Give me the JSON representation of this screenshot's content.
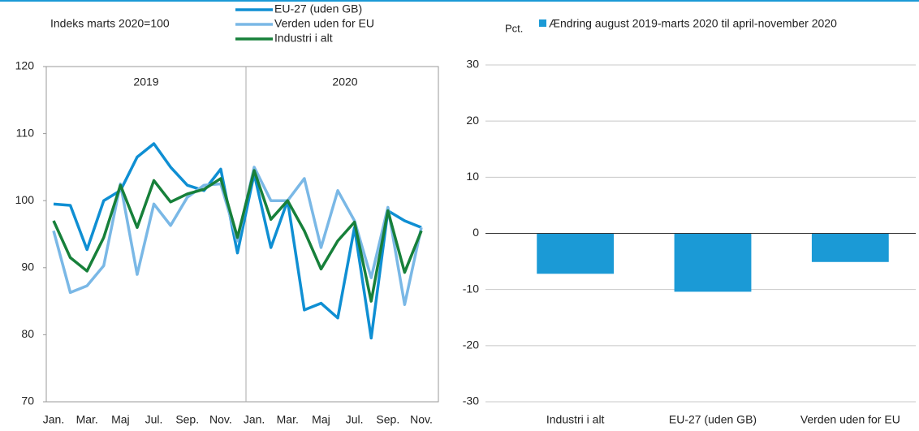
{
  "chart_data": [
    {
      "type": "line",
      "y_label": "Indeks marts 2020=100",
      "annotations": [
        "2019",
        "2020"
      ],
      "categories": [
        "Jan.",
        null,
        "Mar.",
        null,
        "Maj",
        null,
        "Jul.",
        null,
        "Sep.",
        null,
        "Nov.",
        null,
        "Jan.",
        null,
        "Mar.",
        null,
        "Maj",
        null,
        "Jul.",
        null,
        "Sep.",
        null,
        "Nov."
      ],
      "series": [
        {
          "name": "EU-27 (uden GB)",
          "color": "#0f8fd3",
          "values": [
            99.5,
            99.3,
            92.7,
            100,
            101.5,
            106.5,
            108.5,
            105,
            102.3,
            101.5,
            104.7,
            92.2,
            104,
            93,
            100,
            83.7,
            84.7,
            82.5,
            96,
            79.5,
            98.5,
            97,
            96
          ]
        },
        {
          "name": "Verden uden for EU",
          "color": "#7ab8e6",
          "values": [
            95.5,
            86.3,
            87.3,
            90.3,
            102.5,
            89,
            99.5,
            96.3,
            100.5,
            102.3,
            102.5,
            94,
            105,
            100,
            100,
            103.3,
            93,
            101.5,
            97,
            88.5,
            99,
            84.5,
            96
          ]
        },
        {
          "name": "Industri i alt",
          "color": "#17803a",
          "values": [
            97,
            91.5,
            89.5,
            94.5,
            102.3,
            96,
            103,
            99.8,
            101,
            101.7,
            103.3,
            94.5,
            104.5,
            97.2,
            100,
            95.5,
            89.8,
            94,
            96.8,
            85,
            98.5,
            89.3,
            95.5
          ]
        }
      ],
      "ylim": [
        70,
        120
      ],
      "yticks": [
        70,
        80,
        90,
        100,
        110,
        120
      ],
      "grid": false
    },
    {
      "type": "bar",
      "y_label": "Pct.",
      "categories": [
        "Industri i alt",
        "EU-27 (uden GB)",
        "Verden uden for EU"
      ],
      "series": [
        {
          "name": "Ændring august 2019-marts 2020 til april-november 2020",
          "color": "#1b9ad6",
          "values": [
            -7.2,
            -10.4,
            -5.1
          ]
        }
      ],
      "ylim": [
        -30,
        30
      ],
      "yticks": [
        -30,
        -20,
        -10,
        0,
        10,
        20,
        30
      ],
      "grid": true
    }
  ]
}
